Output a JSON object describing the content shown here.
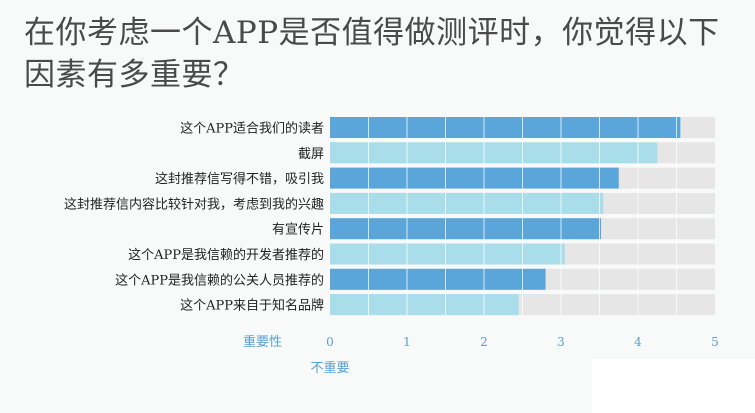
{
  "title": "在你考虑一个APP是否值得做测评时，你觉得以下因素有多重要？",
  "chart_data": {
    "type": "bar",
    "orientation": "horizontal",
    "categories": [
      "这个APP适合我们的读者",
      "截屏",
      "这封推荐信写得不错，吸引我",
      "这封推荐信内容比较针对我，考虑到我的兴趣",
      "有宣传片",
      "这个APP是我信赖的开发者推荐的",
      "这个APP是我信赖的公关人员推荐的",
      "这个APP来自于知名品牌"
    ],
    "values": [
      4.55,
      4.25,
      3.75,
      3.55,
      3.52,
      3.05,
      2.8,
      2.45
    ],
    "xlim": [
      0,
      5
    ],
    "xticks": [
      "0",
      "1",
      "2",
      "3",
      "4",
      "5"
    ],
    "x_axis_label": "重要性",
    "x_min_label": "不重要",
    "grid": true,
    "colors": {
      "bar_dark": "#5aa6da",
      "bar_light": "#a9dde9",
      "track": "#e6e6e6",
      "tick_text": "#5aa0d3"
    }
  }
}
